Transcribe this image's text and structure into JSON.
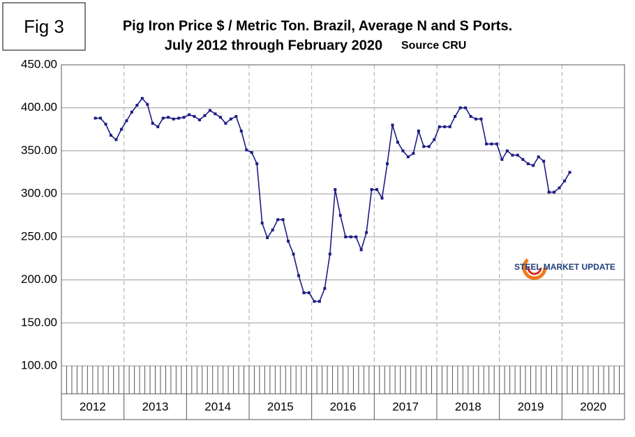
{
  "chart_data": {
    "type": "line",
    "figure_label": "Fig 3",
    "title": "Pig Iron Price $ / Metric Ton. Brazil, Average N and S Ports.",
    "subtitle": "July 2012 through February 2020",
    "source": "Source CRU",
    "logo": "STEEL MARKET UPDATE",
    "categories": [
      "2012",
      null,
      null,
      null,
      null,
      null,
      null,
      null,
      null,
      null,
      null,
      null,
      "2013",
      null,
      null,
      null,
      null,
      null,
      null,
      null,
      null,
      null,
      null,
      null,
      "2014",
      null,
      null,
      null,
      null,
      null,
      null,
      null,
      null,
      null,
      null,
      null,
      "2015",
      null,
      null,
      null,
      null,
      null,
      null,
      null,
      null,
      null,
      null,
      null,
      "2016",
      null,
      null,
      null,
      null,
      null,
      null,
      null,
      null,
      null,
      null,
      null,
      "2017",
      null,
      null,
      null,
      null,
      null,
      null,
      null,
      null,
      null,
      null,
      null,
      "2018",
      null,
      null,
      null,
      null,
      null,
      null,
      null,
      null,
      null,
      null,
      null,
      "2019",
      null,
      null,
      null,
      null,
      null,
      null,
      null,
      null,
      null,
      null,
      null,
      "2020",
      null,
      null,
      null,
      null,
      null,
      null,
      null,
      null,
      null,
      null,
      null
    ],
    "series": [
      {
        "color": "#1c1c85",
        "values": [
          null,
          null,
          null,
          null,
          null,
          null,
          388,
          388,
          381,
          368,
          363,
          375,
          385,
          395,
          403,
          411,
          404,
          382,
          378,
          388,
          389,
          387,
          388,
          389,
          392,
          390,
          386,
          391,
          397,
          393,
          389,
          382,
          387,
          390,
          373,
          351,
          348,
          335,
          266,
          249,
          258,
          270,
          270,
          245,
          230,
          205,
          185,
          185,
          175,
          175,
          190,
          230,
          305,
          275,
          250,
          250,
          250,
          235,
          255,
          305,
          305,
          295,
          335,
          380,
          360,
          350,
          343,
          347,
          373,
          355,
          355,
          363,
          378,
          378,
          378,
          390,
          400,
          400,
          390,
          387,
          387,
          358,
          358,
          358,
          340,
          350,
          345,
          345,
          340,
          335,
          333,
          343,
          338,
          302,
          302,
          307,
          315,
          325,
          null,
          null,
          null,
          null,
          null,
          null,
          null,
          null,
          null,
          null
        ]
      }
    ],
    "ylim": [
      100,
      450
    ],
    "yticks": [
      {
        "value": 100,
        "label": "100.00"
      },
      {
        "value": 150,
        "label": "150.00"
      },
      {
        "value": 200,
        "label": "200.00"
      },
      {
        "value": 250,
        "label": "250.00"
      },
      {
        "value": 300,
        "label": "300.00"
      },
      {
        "value": 350,
        "label": "350.00"
      },
      {
        "value": 400,
        "label": "400.00"
      },
      {
        "value": 450,
        "label": "450.00"
      }
    ],
    "grid": true
  }
}
